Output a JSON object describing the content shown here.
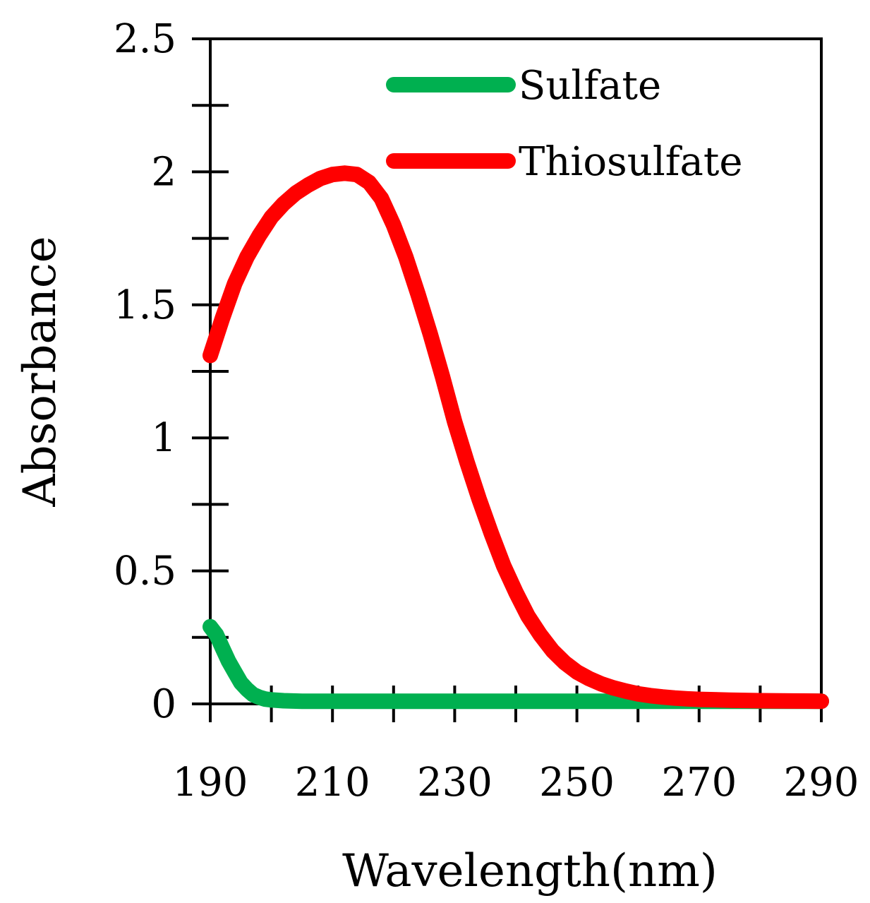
{
  "chart_data": {
    "type": "line",
    "title": "",
    "xlabel": "Wavelength(nm)",
    "ylabel": "Absorbance",
    "xlim": [
      190,
      290
    ],
    "ylim": [
      0,
      2.5
    ],
    "x_ticks": [
      190,
      210,
      230,
      250,
      270,
      290
    ],
    "x_tick_labels": [
      "190",
      "210",
      "230",
      "250",
      "270",
      "290"
    ],
    "x_minor_step": 10,
    "y_ticks": [
      0,
      0.5,
      1,
      1.5,
      2,
      2.5
    ],
    "y_tick_labels": [
      "0",
      "0.5",
      "1",
      "1.5",
      "2",
      "2.5"
    ],
    "y_minor_step": 0.25,
    "grid": false,
    "legend_position": "top-right",
    "series": [
      {
        "name": "Sulfate",
        "color": "#00b050",
        "x": [
          190,
          191,
          192,
          193,
          194,
          195,
          196,
          197,
          198,
          199,
          200,
          202,
          205,
          210,
          220,
          230,
          240,
          250,
          260,
          270,
          280,
          290
        ],
        "values": [
          0.29,
          0.26,
          0.21,
          0.16,
          0.12,
          0.08,
          0.055,
          0.035,
          0.025,
          0.018,
          0.015,
          0.012,
          0.01,
          0.01,
          0.01,
          0.01,
          0.01,
          0.01,
          0.01,
          0.01,
          0.01,
          0.01
        ]
      },
      {
        "name": "Thiosulfate",
        "color": "#ff0000",
        "x": [
          190,
          192,
          194,
          196,
          198,
          200,
          202,
          204,
          206,
          208,
          210,
          212,
          214,
          216,
          218,
          220,
          222,
          224,
          226,
          228,
          230,
          232,
          234,
          236,
          238,
          240,
          242,
          244,
          246,
          248,
          250,
          252,
          254,
          256,
          258,
          260,
          262,
          264,
          266,
          268,
          270,
          275,
          280,
          285,
          290
        ],
        "values": [
          1.31,
          1.45,
          1.58,
          1.68,
          1.76,
          1.83,
          1.88,
          1.92,
          1.95,
          1.975,
          1.99,
          1.995,
          1.99,
          1.96,
          1.9,
          1.8,
          1.68,
          1.54,
          1.39,
          1.23,
          1.06,
          0.91,
          0.77,
          0.64,
          0.52,
          0.42,
          0.33,
          0.26,
          0.2,
          0.155,
          0.12,
          0.095,
          0.075,
          0.06,
          0.048,
          0.038,
          0.031,
          0.026,
          0.022,
          0.019,
          0.017,
          0.014,
          0.012,
          0.011,
          0.01
        ]
      }
    ]
  }
}
